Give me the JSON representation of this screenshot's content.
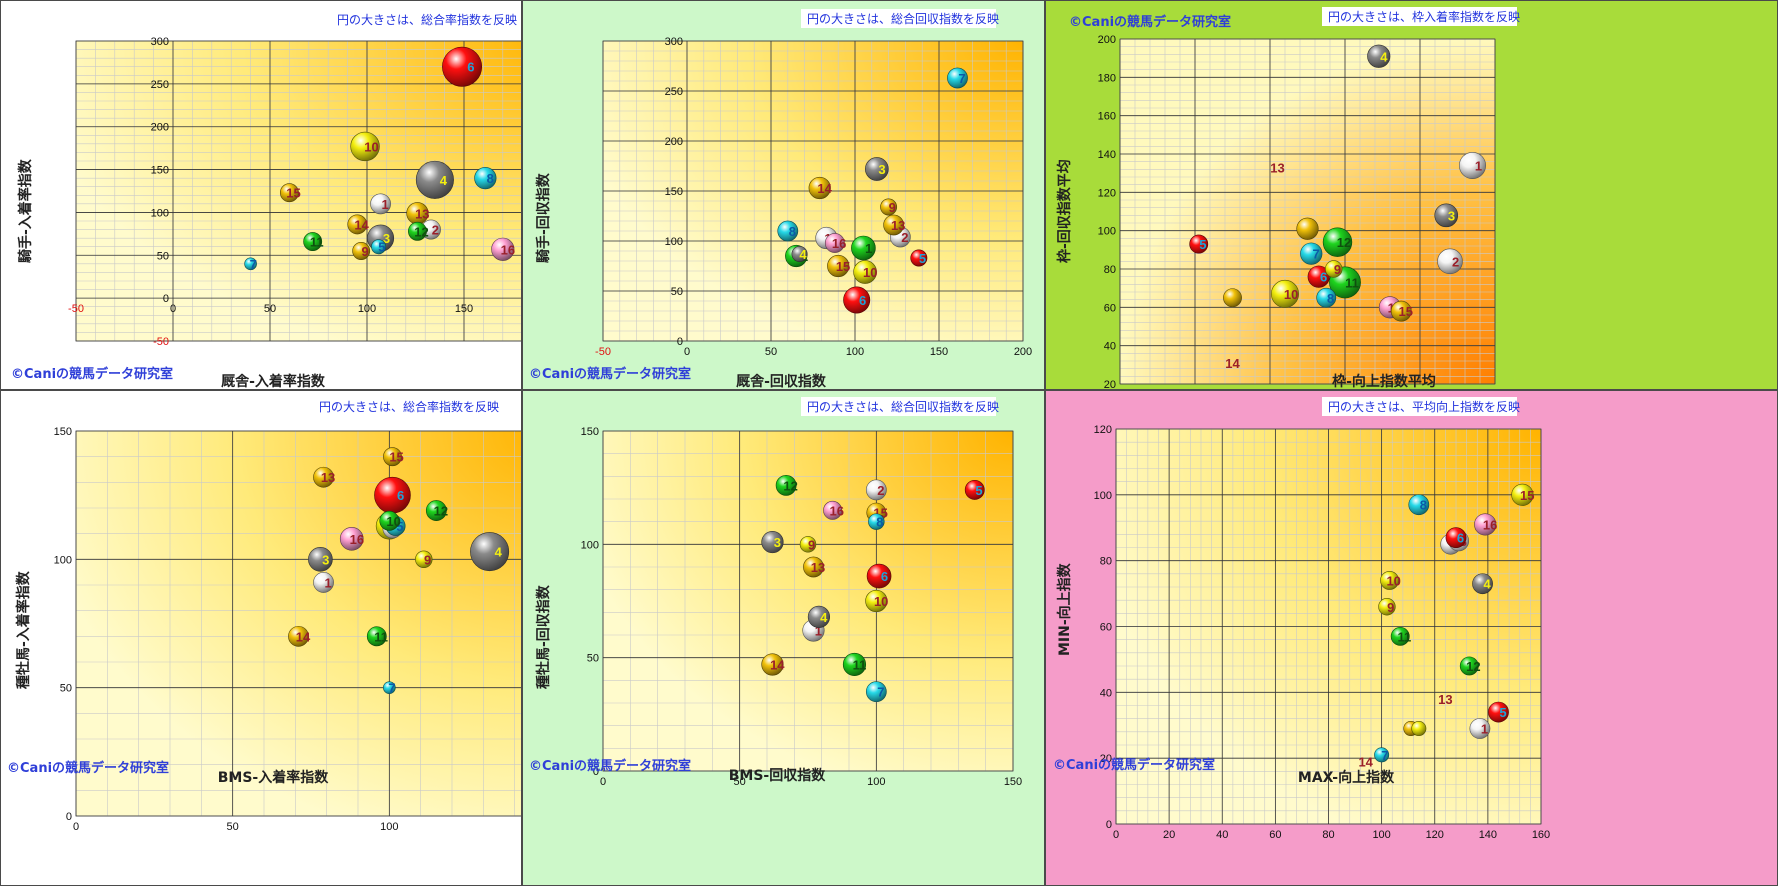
{
  "figure": {
    "credit": "©Caniの競馬データ研究室"
  },
  "chart_data": [
    {
      "type": "scatter",
      "note": "円の大きさは、総合率指数を反映",
      "xlabel": "厩舎-入着率指数",
      "ylabel": "騎手-入着率指数",
      "xlim": [
        -50,
        200
      ],
      "ylim": [
        -50,
        300
      ],
      "xticks": [
        -50,
        0,
        50,
        100,
        150,
        200
      ],
      "yticks": [
        -50,
        0,
        50,
        100,
        150,
        200,
        250,
        300
      ],
      "bg": "#ffffff",
      "gradient": "tr",
      "points": [
        {
          "label": "1",
          "x": 107,
          "y": 110,
          "size": 0.42,
          "color": "#f4f4f4"
        },
        {
          "label": "2",
          "x": 133,
          "y": 80,
          "size": 0.4,
          "color": "#f4f4f4"
        },
        {
          "label": "3",
          "x": 107,
          "y": 70,
          "size": 0.55,
          "color": "#8a8a8a"
        },
        {
          "label": "4",
          "x": 135,
          "y": 138,
          "size": 0.78,
          "color": "#8a8a8a"
        },
        {
          "label": "5",
          "x": 106,
          "y": 60,
          "size": 0.3,
          "color": "#26d9e8"
        },
        {
          "label": "6",
          "x": 149,
          "y": 270,
          "size": 0.82,
          "color": "#ff1010"
        },
        {
          "label": "7",
          "x": 40,
          "y": 40,
          "size": 0.2,
          "color": "#26d9e8"
        },
        {
          "label": "8",
          "x": 161,
          "y": 140,
          "size": 0.45,
          "color": "#26d9e8"
        },
        {
          "label": "9",
          "x": 97,
          "y": 55,
          "size": 0.36,
          "color": "#f2c20a"
        },
        {
          "label": "10",
          "x": 99,
          "y": 177,
          "size": 0.6,
          "color": "#f4ef10"
        },
        {
          "label": "11",
          "x": 72,
          "y": 66,
          "size": 0.38,
          "color": "#1ed41e"
        },
        {
          "label": "12",
          "x": 126,
          "y": 78,
          "size": 0.38,
          "color": "#1ed41e"
        },
        {
          "label": "13",
          "x": 126,
          "y": 99,
          "size": 0.45,
          "color": "#f2c20a"
        },
        {
          "label": "14",
          "x": 95,
          "y": 86,
          "size": 0.4,
          "color": "#f2c20a"
        },
        {
          "label": "15",
          "x": 60,
          "y": 123,
          "size": 0.38,
          "color": "#f2c20a"
        },
        {
          "label": "16",
          "x": 170,
          "y": 57,
          "size": 0.47,
          "color": "#ffa0d2"
        }
      ]
    },
    {
      "type": "scatter",
      "note": "円の大きさは、総合回収指数を反映",
      "xlabel": "厩舎-回収指数",
      "ylabel": "騎手-回収指数",
      "xlim": [
        -50,
        200
      ],
      "ylim": [
        0,
        300
      ],
      "xticks": [
        -50,
        0,
        50,
        100,
        150,
        200
      ],
      "yticks": [
        0,
        50,
        100,
        150,
        200,
        250,
        300
      ],
      "bg": "#cdf8c9",
      "gradient": "tr",
      "points": [
        {
          "label": "1",
          "x": 105,
          "y": 93,
          "size": 0.5,
          "color": "#1ed41e"
        },
        {
          "label": "2",
          "x": 127,
          "y": 104,
          "size": 0.42,
          "color": "#f4f4f4"
        },
        {
          "label": "3",
          "x": 113,
          "y": 172,
          "size": 0.48,
          "color": "#8a8a8a"
        },
        {
          "label": "4",
          "x": 67,
          "y": 87,
          "size": 0.32,
          "color": "#8a8a8a"
        },
        {
          "label": "5",
          "x": 138,
          "y": 83,
          "size": 0.34,
          "color": "#ff1010"
        },
        {
          "label": "6",
          "x": 101,
          "y": 41,
          "size": 0.55,
          "color": "#ff1010"
        },
        {
          "label": "7",
          "x": 161,
          "y": 263,
          "size": 0.42,
          "color": "#26d9e8"
        },
        {
          "label": "8",
          "x": 60,
          "y": 110,
          "size": 0.42,
          "color": "#26d9e8"
        },
        {
          "label": "9",
          "x": 120,
          "y": 134,
          "size": 0.34,
          "color": "#f2c20a"
        },
        {
          "label": "10",
          "x": 106,
          "y": 69,
          "size": 0.48,
          "color": "#f4ef10"
        },
        {
          "label": "11",
          "x": 83,
          "y": 103,
          "size": 0.45,
          "color": "#f4f4f4"
        },
        {
          "label": "12",
          "x": 65,
          "y": 85,
          "size": 0.45,
          "color": "#1ed41e"
        },
        {
          "label": "13",
          "x": 123,
          "y": 116,
          "size": 0.42,
          "color": "#f2c20a"
        },
        {
          "label": "14",
          "x": 79,
          "y": 153,
          "size": 0.45,
          "color": "#f2c20a"
        },
        {
          "label": "15",
          "x": 90,
          "y": 75,
          "size": 0.45,
          "color": "#f2c20a"
        },
        {
          "label": "16",
          "x": 88,
          "y": 98,
          "size": 0.4,
          "color": "#ffa0d2"
        }
      ]
    },
    {
      "type": "scatter",
      "note": "円の大きさは、枠入着率指数を反映",
      "xlabel": "枠-向上指数平均",
      "ylabel": "枠-回収指数平均",
      "xlim": [
        40,
        140
      ],
      "ylim": [
        20,
        200
      ],
      "xticks": [
        40,
        60,
        80,
        100,
        120,
        140
      ],
      "yticks": [
        20,
        40,
        60,
        80,
        100,
        120,
        140,
        160,
        180,
        200
      ],
      "bg": "#a8dc3a",
      "gradient": "br",
      "points": [
        {
          "label": "1",
          "x": 134,
          "y": 134,
          "size": 0.55,
          "color": "#f4f4f4"
        },
        {
          "label": "2",
          "x": 128,
          "y": 84,
          "size": 0.52,
          "color": "#f4f4f4"
        },
        {
          "label": "3",
          "x": 127,
          "y": 108,
          "size": 0.48,
          "color": "#8a8a8a"
        },
        {
          "label": "4",
          "x": 109,
          "y": 191,
          "size": 0.47,
          "color": "#8a8a8a"
        },
        {
          "label": "5",
          "x": 61,
          "y": 93,
          "size": 0.38,
          "color": "#ff1010"
        },
        {
          "label": "6",
          "x": 93,
          "y": 76,
          "size": 0.45,
          "color": "#ff1010"
        },
        {
          "label": "7",
          "x": 91,
          "y": 88,
          "size": 0.45,
          "color": "#26d9e8"
        },
        {
          "label": "8",
          "x": 95,
          "y": 65,
          "size": 0.4,
          "color": "#26d9e8"
        },
        {
          "label": "9",
          "x": 97,
          "y": 80,
          "size": 0.35,
          "color": "#f4ef10"
        },
        {
          "label": "10",
          "x": 84,
          "y": 67,
          "size": 0.57,
          "color": "#f4ef10"
        },
        {
          "label": "11",
          "x": 100,
          "y": 73,
          "size": 0.65,
          "color": "#1ed41e"
        },
        {
          "label": "12",
          "x": 98,
          "y": 94,
          "size": 0.6,
          "color": "#1ed41e"
        },
        {
          "label": "13",
          "x": 82,
          "y": 133,
          "size": 0,
          "color": "#ffffff"
        },
        {
          "label": "14",
          "x": 70,
          "y": 31,
          "size": 0,
          "color": "#ffffff"
        },
        {
          "label": "15",
          "x": 115,
          "y": 58,
          "size": 0.42,
          "color": "#f2c20a"
        },
        {
          "label": "16",
          "x": 112,
          "y": 60,
          "size": 0.45,
          "color": "#ffa0d2"
        },
        {
          "label": "",
          "x": 70,
          "y": 65,
          "size": 0.38,
          "color": "#f2c20a"
        },
        {
          "label": "",
          "x": 90,
          "y": 101,
          "size": 0.45,
          "color": "#f2c20a"
        }
      ]
    },
    {
      "type": "scatter",
      "note": "円の大きさは、総合率指数を反映",
      "xlabel": "BMS-入着率指数",
      "ylabel": "種牡馬-入着率指数",
      "xlim": [
        0,
        150
      ],
      "ylim": [
        0,
        150
      ],
      "xticks": [
        0,
        50,
        100,
        150
      ],
      "yticks": [
        0,
        50,
        100,
        150
      ],
      "bg": "#ffffff",
      "gradient": "tr",
      "points": [
        {
          "label": "1",
          "x": 79,
          "y": 91,
          "size": 0.42,
          "color": "#f4f4f4"
        },
        {
          "label": "2",
          "x": 101,
          "y": 112,
          "size": 0.4,
          "color": "#f4f4f4"
        },
        {
          "label": "3",
          "x": 78,
          "y": 100,
          "size": 0.5,
          "color": "#8a8a8a"
        },
        {
          "label": "4",
          "x": 132,
          "y": 103,
          "size": 0.8,
          "color": "#8a8a8a"
        },
        {
          "label": "5",
          "x": 102,
          "y": 113,
          "size": 0.4,
          "color": "#26d9e8"
        },
        {
          "label": "6",
          "x": 101,
          "y": 125,
          "size": 0.75,
          "color": "#ff1010"
        },
        {
          "label": "7",
          "x": 100,
          "y": 50,
          "size": 0.2,
          "color": "#26d9e8"
        },
        {
          "label": "8",
          "x": 100,
          "y": 113,
          "size": 0.55,
          "color": "#f4ef10"
        },
        {
          "label": "9",
          "x": 111,
          "y": 100,
          "size": 0.35,
          "color": "#f4ef10"
        },
        {
          "label": "10",
          "x": 100,
          "y": 115,
          "size": 0.4,
          "color": "#1ed41e"
        },
        {
          "label": "11",
          "x": 96,
          "y": 70,
          "size": 0.4,
          "color": "#1ed41e"
        },
        {
          "label": "12",
          "x": 115,
          "y": 119,
          "size": 0.42,
          "color": "#1ed41e"
        },
        {
          "label": "13",
          "x": 79,
          "y": 132,
          "size": 0.42,
          "color": "#f2c20a"
        },
        {
          "label": "14",
          "x": 71,
          "y": 70,
          "size": 0.42,
          "color": "#f2c20a"
        },
        {
          "label": "15",
          "x": 101,
          "y": 140,
          "size": 0.38,
          "color": "#f2c20a"
        },
        {
          "label": "16",
          "x": 88,
          "y": 108,
          "size": 0.48,
          "color": "#ffa0d2"
        }
      ]
    },
    {
      "type": "scatter",
      "note": "円の大きさは、総合回収指数を反映",
      "xlabel": "BMS-回収指数",
      "ylabel": "種牡馬-回収指数",
      "xlim": [
        0,
        150
      ],
      "ylim": [
        0,
        150
      ],
      "xticks": [
        0,
        50,
        100,
        150
      ],
      "yticks": [
        0,
        50,
        100,
        150
      ],
      "bg": "#cdf8c9",
      "gradient": "tr",
      "points": [
        {
          "label": "1",
          "x": 77,
          "y": 62,
          "size": 0.45,
          "color": "#f4f4f4"
        },
        {
          "label": "2",
          "x": 100,
          "y": 124,
          "size": 0.42,
          "color": "#f4f4f4"
        },
        {
          "label": "3",
          "x": 62,
          "y": 101,
          "size": 0.45,
          "color": "#8a8a8a"
        },
        {
          "label": "4",
          "x": 79,
          "y": 68,
          "size": 0.45,
          "color": "#8a8a8a"
        },
        {
          "label": "5",
          "x": 136,
          "y": 124,
          "size": 0.4,
          "color": "#ff1010"
        },
        {
          "label": "6",
          "x": 101,
          "y": 86,
          "size": 0.5,
          "color": "#ff1010"
        },
        {
          "label": "7",
          "x": 100,
          "y": 35,
          "size": 0.42,
          "color": "#26d9e8"
        },
        {
          "label": "8",
          "x": 100,
          "y": 110,
          "size": 0.33,
          "color": "#26d9e8"
        },
        {
          "label": "9",
          "x": 75,
          "y": 100,
          "size": 0.33,
          "color": "#f4ef10"
        },
        {
          "label": "10",
          "x": 100,
          "y": 75,
          "size": 0.45,
          "color": "#f4ef10"
        },
        {
          "label": "11",
          "x": 92,
          "y": 47,
          "size": 0.47,
          "color": "#1ed41e"
        },
        {
          "label": "12",
          "x": 67,
          "y": 126,
          "size": 0.42,
          "color": "#1ed41e"
        },
        {
          "label": "13",
          "x": 77,
          "y": 90,
          "size": 0.42,
          "color": "#f2c20a"
        },
        {
          "label": "14",
          "x": 62,
          "y": 47,
          "size": 0.45,
          "color": "#f2c20a"
        },
        {
          "label": "15",
          "x": 100,
          "y": 114,
          "size": 0.4,
          "color": "#f2c20a"
        },
        {
          "label": "16",
          "x": 84,
          "y": 115,
          "size": 0.38,
          "color": "#ffa0d2"
        }
      ]
    },
    {
      "type": "scatter",
      "note": "円の大きさは、平均向上指数を反映",
      "xlabel": "MAX-向上指数",
      "ylabel": "MIN-向上指数",
      "xlim": [
        0,
        160
      ],
      "ylim": [
        0,
        120
      ],
      "xticks": [
        0,
        20,
        40,
        60,
        80,
        100,
        120,
        140,
        160
      ],
      "yticks": [
        0,
        20,
        40,
        60,
        80,
        100,
        120
      ],
      "bg": "#f59cc9",
      "gradient": "tr",
      "points": [
        {
          "label": "1",
          "x": 137,
          "y": 29,
          "size": 0.42,
          "color": "#f4f4f4"
        },
        {
          "label": "2",
          "x": 126,
          "y": 85,
          "size": 0.42,
          "color": "#f4f4f4"
        },
        {
          "label": "3",
          "x": 129,
          "y": 86,
          "size": 0.42,
          "color": "#f4f4f4"
        },
        {
          "label": "4",
          "x": 138,
          "y": 73,
          "size": 0.42,
          "color": "#8a8a8a"
        },
        {
          "label": "5",
          "x": 144,
          "y": 34,
          "size": 0.42,
          "color": "#ff1010"
        },
        {
          "label": "6",
          "x": 128,
          "y": 87,
          "size": 0.42,
          "color": "#ff1010"
        },
        {
          "label": "7",
          "x": 100,
          "y": 21,
          "size": 0.3,
          "color": "#26d9e8"
        },
        {
          "label": "8",
          "x": 114,
          "y": 97,
          "size": 0.42,
          "color": "#26d9e8"
        },
        {
          "label": "9",
          "x": 102,
          "y": 66,
          "size": 0.35,
          "color": "#f4ef10"
        },
        {
          "label": "10",
          "x": 103,
          "y": 74,
          "size": 0.38,
          "color": "#f4ef10"
        },
        {
          "label": "11",
          "x": 107,
          "y": 57,
          "size": 0.38,
          "color": "#1ed41e"
        },
        {
          "label": "12",
          "x": 133,
          "y": 48,
          "size": 0.38,
          "color": "#1ed41e"
        },
        {
          "label": "13",
          "x": 124,
          "y": 38,
          "size": 0,
          "color": "#ffffff"
        },
        {
          "label": "14",
          "x": 94,
          "y": 19,
          "size": 0,
          "color": "#ffffff"
        },
        {
          "label": "15",
          "x": 153,
          "y": 100,
          "size": 0.45,
          "color": "#f4ef10"
        },
        {
          "label": "16",
          "x": 139,
          "y": 91,
          "size": 0.45,
          "color": "#ffa0d2"
        },
        {
          "label": "",
          "x": 111,
          "y": 29,
          "size": 0.3,
          "color": "#f2c20a"
        },
        {
          "label": "",
          "x": 114,
          "y": 29,
          "size": 0.3,
          "color": "#f4ef10"
        }
      ]
    }
  ]
}
